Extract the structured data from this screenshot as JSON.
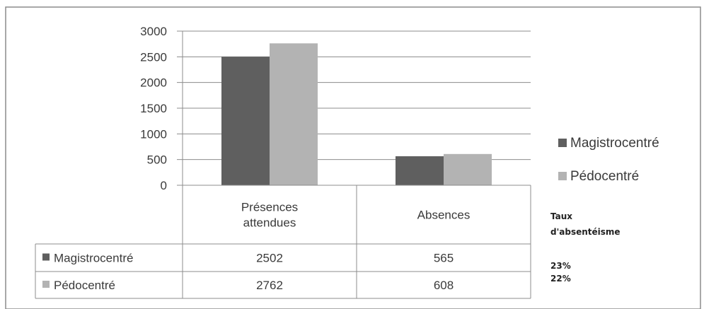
{
  "chart_data": {
    "type": "bar",
    "categories": [
      "Présences\nattendues",
      "Absences"
    ],
    "series": [
      {
        "name": "Magistrocentré",
        "values": [
          2502,
          565
        ],
        "color": "#5f5f5f"
      },
      {
        "name": "Pédocentré",
        "values": [
          2762,
          608
        ],
        "color": "#b3b3b3"
      }
    ],
    "ylim": [
      0,
      3000
    ],
    "yticks": [
      0,
      500,
      1000,
      1500,
      2000,
      2500,
      3000
    ],
    "grid": true,
    "legend_position": "right",
    "data_table": {
      "rows": [
        {
          "label": "Magistrocentré",
          "values": [
            "2502",
            "565"
          ]
        },
        {
          "label": "Pédocentré",
          "values": [
            "2762",
            "608"
          ]
        }
      ]
    },
    "side_note": {
      "title_line1": "Taux",
      "title_line2": "d'absentéisme",
      "values": [
        "23%",
        "22%"
      ]
    }
  }
}
